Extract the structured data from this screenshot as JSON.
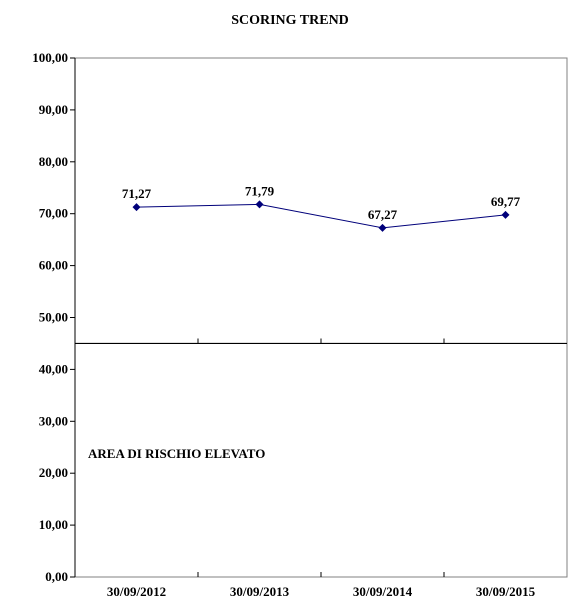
{
  "chart_data": {
    "type": "line",
    "title": "SCORING TREND",
    "xlabel": "",
    "ylabel": "",
    "categories": [
      "30/09/2012",
      "30/09/2013",
      "30/09/2014",
      "30/09/2015"
    ],
    "series": [
      {
        "values": [
          71.27,
          71.79,
          67.27,
          69.77
        ],
        "value_labels": [
          "71,27",
          "71,79",
          "67,27",
          "69,77"
        ],
        "color": "#00007a"
      }
    ],
    "ylim": [
      0,
      100
    ],
    "y_ticks": [
      0,
      10,
      20,
      30,
      40,
      50,
      60,
      70,
      80,
      90,
      100
    ],
    "y_tick_labels": [
      "0,00",
      "10,00",
      "20,00",
      "30,00",
      "40,00",
      "50,00",
      "60,00",
      "70,00",
      "80,00",
      "90,00",
      "100,00"
    ],
    "threshold": {
      "value": 45,
      "label": "AREA DI RISCHIO ELEVATO",
      "color": "#000000"
    },
    "grid": false,
    "legend": "none"
  }
}
